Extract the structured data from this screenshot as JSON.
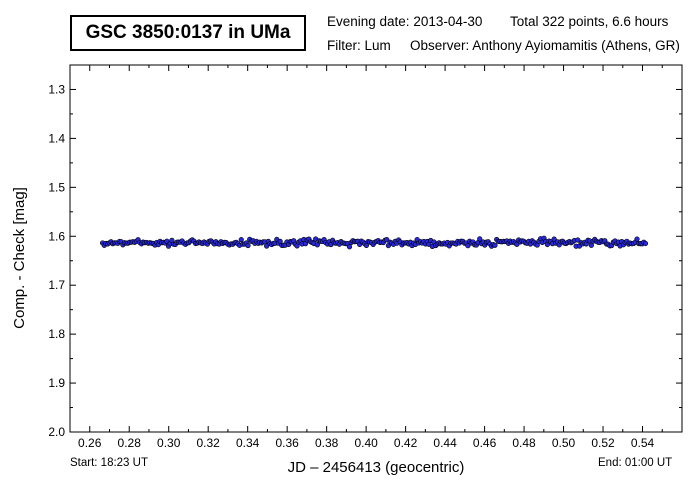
{
  "header": {
    "title": "GSC 3850:0137 in UMa",
    "evening_date": "Evening date: 2013-04-30",
    "total": "Total 322 points, 6.6 hours",
    "filter": "Filter: Lum",
    "observer": "Observer: Anthony Ayiomamitis (Athens, GR)"
  },
  "footer": {
    "start": "Start: 18:23 UT",
    "end": "End: 01:00 UT"
  },
  "chart_data": {
    "type": "scatter",
    "title": "GSC 3850:0137 in UMa",
    "xlabel": "JD – 2456413  (geocentric)",
    "ylabel": "Comp. - Check [mag]",
    "xlim": [
      0.25,
      0.56
    ],
    "ylim": [
      1.25,
      2.0
    ],
    "y_inverted": true,
    "x_ticks": [
      "0.26",
      "0.28",
      "0.30",
      "0.32",
      "0.34",
      "0.36",
      "0.38",
      "0.40",
      "0.42",
      "0.44",
      "0.46",
      "0.48",
      "0.50",
      "0.52",
      "0.54"
    ],
    "y_ticks": [
      "1.3",
      "1.4",
      "1.5",
      "1.6",
      "1.7",
      "1.8",
      "1.9",
      "2.0"
    ],
    "marker_color": "#2828d8",
    "grid": false,
    "series": [
      {
        "x_start": 0.2665,
        "x_end": 0.5415,
        "count": 322,
        "mean": 1.613,
        "scatter": 0.006
      }
    ]
  }
}
